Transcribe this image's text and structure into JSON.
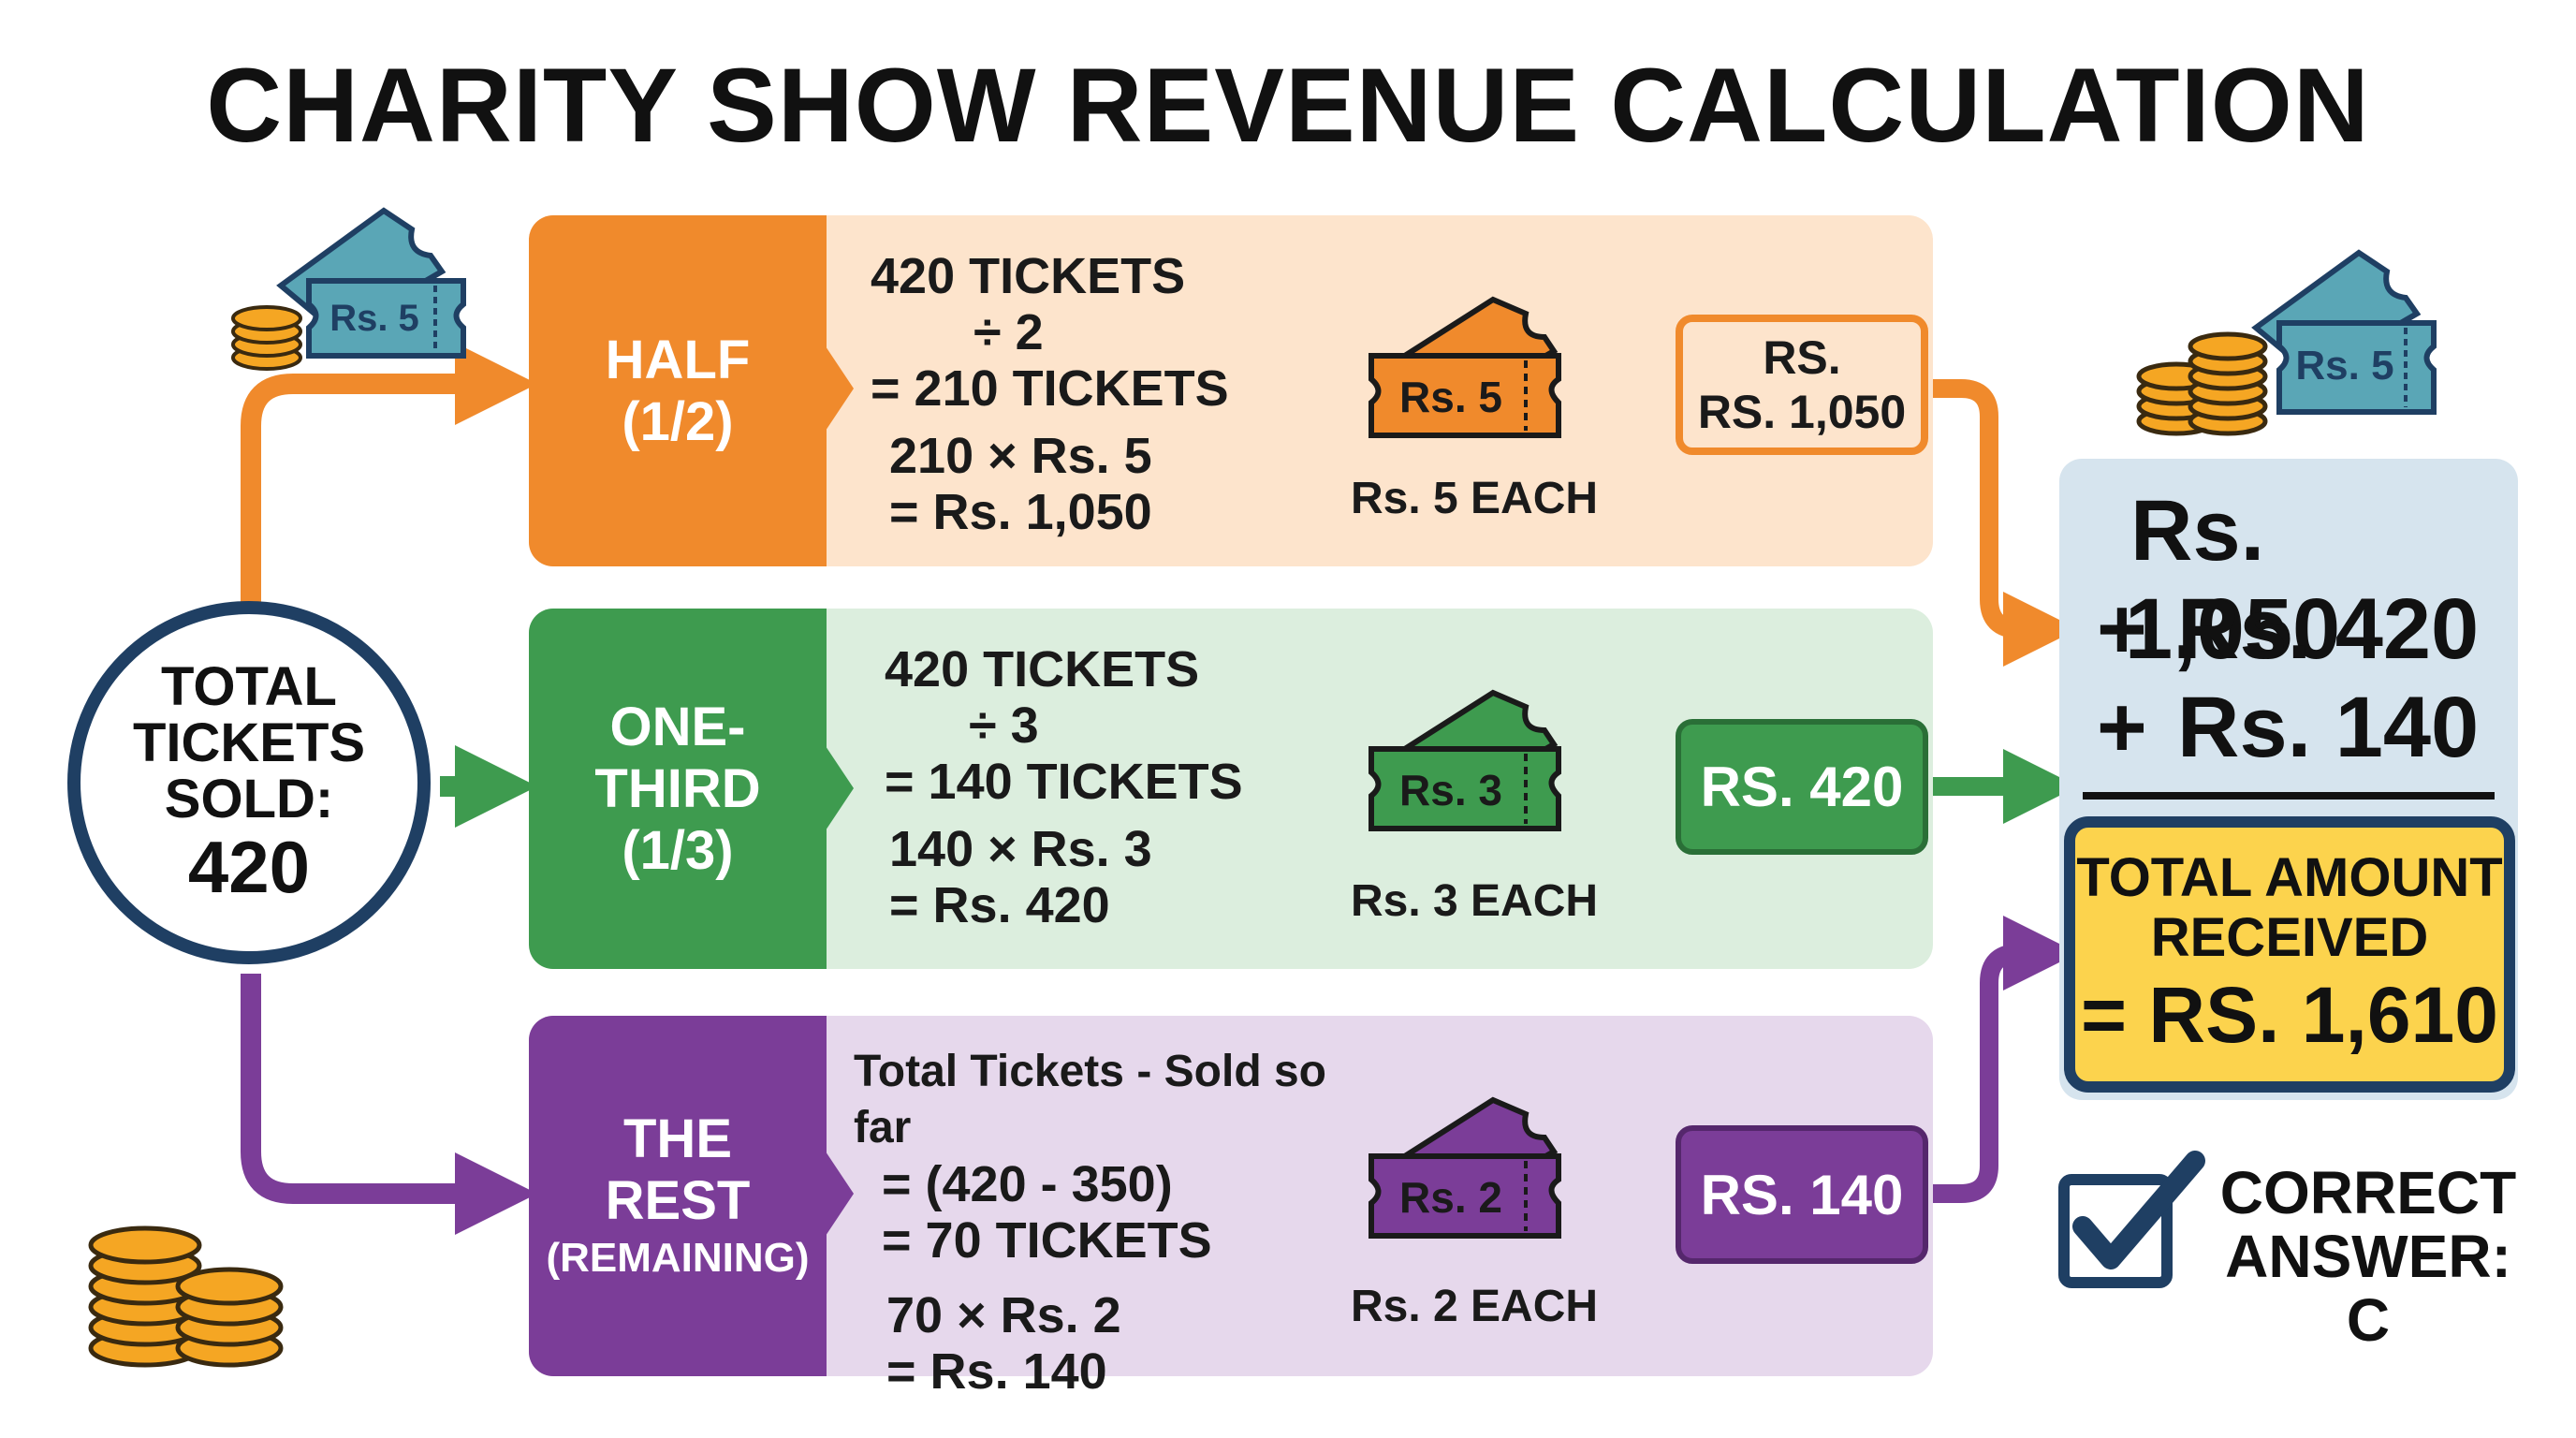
{
  "title": "CHARITY SHOW REVENUE CALCULATION",
  "total": {
    "line1": "TOTAL",
    "line2": "TICKETS",
    "line3": "SOLD:",
    "value": "420"
  },
  "rows": [
    {
      "tag_line1": "HALF",
      "tag_line2": "(1/2)",
      "calc1": "420 TICKETS",
      "calc2": "÷ 2",
      "calc3": "= 210 TICKETS",
      "calc4": "210 × Rs. 5",
      "calc5": "= Rs. 1,050",
      "ticket": "Rs. 5",
      "each": "Rs. 5 EACH",
      "result_line1": "RS.",
      "result_line2": "RS. 1,050",
      "color": "#f08a2c",
      "bg": "#fde4cc"
    },
    {
      "tag_line1": "ONE-THIRD",
      "tag_line2": "(1/3)",
      "calc1": "420 TICKETS",
      "calc2": "÷ 3",
      "calc3": "= 140 TICKETS",
      "calc4": "140 × Rs. 3",
      "calc5": "= Rs. 420",
      "ticket": "Rs. 3",
      "each": "Rs. 3 EACH",
      "result": "RS. 420",
      "color": "#3e9b4f",
      "bg": "#dceede"
    },
    {
      "tag_line1": "THE",
      "tag_line2": "REST",
      "tag_line3": "(REMAINING)",
      "calc1": "Total Tickets - Sold so far",
      "calc2": "= (420 - 350)",
      "calc3": "= 70 TICKETS",
      "calc4": "70 × Rs. 2",
      "calc5": "= Rs. 140",
      "ticket": "Rs. 2",
      "each": "Rs. 2 EACH",
      "result": "RS. 140",
      "color": "#7b3d98",
      "bg": "#e6d8ec"
    }
  ],
  "sum": {
    "line1": "Rs. 1,050",
    "line2": "Rs. 420",
    "line3": "Rs. 140",
    "plus": "+"
  },
  "total_amount": {
    "line1": "TOTAL AMOUNT",
    "line2": "RECEIVED",
    "value": "= RS. 1,610"
  },
  "answer": {
    "line1": "CORRECT",
    "line2": "ANSWER: C"
  },
  "deco_tickets": {
    "left": "Rs. 5",
    "right": "Rs. 5"
  },
  "colors": {
    "orange": "#f08a2c",
    "green": "#3e9b4f",
    "purple": "#7b3d98",
    "navy": "#1f3f63",
    "teal": "#5aa6b6",
    "gold": "#f5a623",
    "yellow": "#fcd34d",
    "sum_bg": "#d6e4ee"
  }
}
